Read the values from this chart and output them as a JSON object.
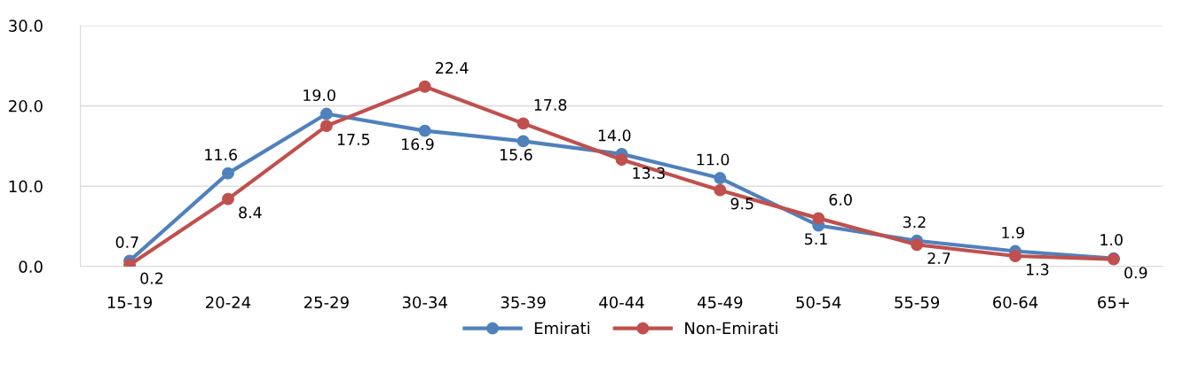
{
  "chart_data": {
    "type": "line",
    "categories": [
      "15-19",
      "20-24",
      "25-29",
      "30-34",
      "35-39",
      "40-44",
      "45-49",
      "50-54",
      "55-59",
      "60-64",
      "65+"
    ],
    "series": [
      {
        "name": "Emirati",
        "color": "#4f81bd",
        "values": [
          0.7,
          11.6,
          19.0,
          16.9,
          15.6,
          14.0,
          11.0,
          5.1,
          3.2,
          1.9,
          1.0
        ],
        "value_labels": [
          "0.7",
          "11.6",
          "19.0",
          "16.9",
          "15.6",
          "14.0",
          "11.0",
          "5.1",
          "3.2",
          "1.9",
          "1.0"
        ]
      },
      {
        "name": "Non-Emirati",
        "color": "#c0504d",
        "values": [
          0.2,
          8.4,
          17.5,
          22.4,
          17.8,
          13.3,
          9.5,
          6.0,
          2.7,
          1.3,
          0.9
        ],
        "value_labels": [
          "0.2",
          "8.4",
          "17.5",
          "22.4",
          "17.8",
          "13.3",
          "9.5",
          "6.0",
          "2.7",
          "1.3",
          "0.9"
        ]
      }
    ],
    "ylim": [
      0,
      30
    ],
    "yticks": [
      {
        "value": 0,
        "label": "0.0"
      },
      {
        "value": 10,
        "label": "10.0"
      },
      {
        "value": 20,
        "label": "20.0"
      },
      {
        "value": 30,
        "label": "30.0"
      }
    ],
    "grid": "y",
    "legend": "bottom",
    "marker": "circle",
    "line_style": "solid"
  }
}
